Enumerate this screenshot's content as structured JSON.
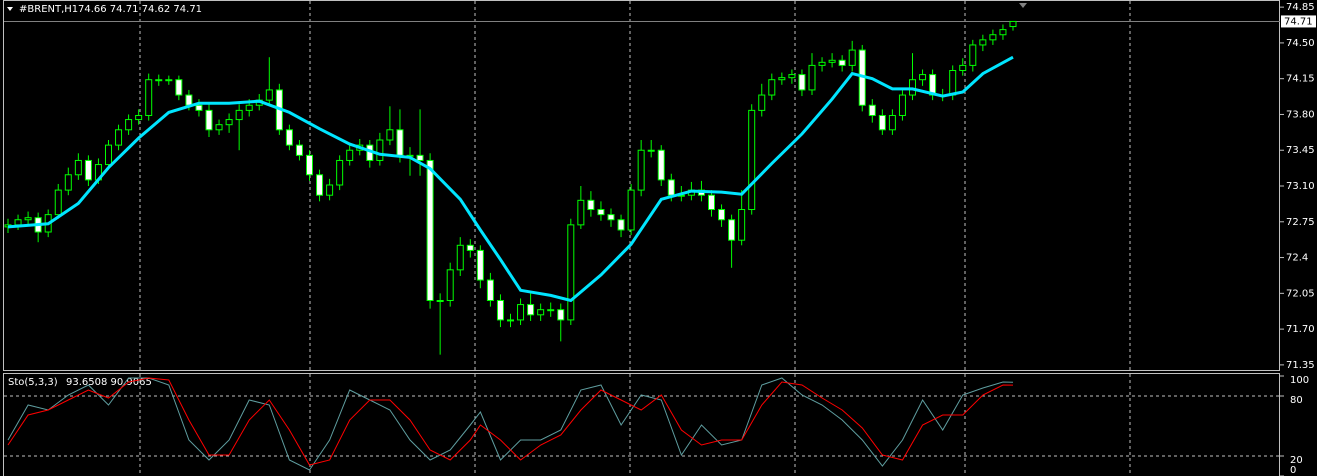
{
  "chart_data": {
    "type": "candlestick",
    "title": "#BRENT,H1",
    "ohlc_text": "74.66 74.71 74.62 74.71",
    "open": [
      72.7,
      72.72,
      72.77,
      72.79,
      72.65,
      72.82,
      73.06,
      73.21,
      73.35,
      73.16,
      73.31,
      73.5,
      73.65,
      73.75,
      73.79,
      74.14,
      74.14,
      74.14,
      73.99,
      73.89,
      73.84,
      73.65,
      73.7,
      73.75,
      73.84,
      73.89,
      73.94,
      74.04,
      73.65,
      73.5,
      73.4,
      73.21,
      73.01,
      73.11,
      73.35,
      73.45,
      73.5,
      73.35,
      73.55,
      73.65,
      73.4,
      73.4,
      73.35,
      71.98,
      71.98,
      72.28,
      72.52,
      72.47,
      72.18,
      71.98,
      71.79,
      71.79,
      71.94,
      71.84,
      71.89,
      71.89,
      71.79,
      72.72,
      72.96,
      72.87,
      72.82,
      72.77,
      72.67,
      73.06,
      73.45,
      73.45,
      73.16,
      73.01,
      73.01,
      73.06,
      73.01,
      72.87,
      72.77,
      72.57,
      72.87,
      73.84,
      73.99,
      74.14,
      74.16,
      74.19,
      74.04,
      74.28,
      74.31,
      74.33,
      74.28,
      74.43,
      73.89,
      73.79,
      73.65,
      73.79,
      73.99,
      74.14,
      74.19,
      73.99,
      73.99,
      74.23,
      74.28,
      74.48,
      74.53,
      74.58,
      74.66
    ],
    "high": [
      72.78,
      72.82,
      72.85,
      72.84,
      72.87,
      73.12,
      73.28,
      73.42,
      73.4,
      73.37,
      73.55,
      73.7,
      73.8,
      73.85,
      74.2,
      74.19,
      74.18,
      74.18,
      74.04,
      73.95,
      73.9,
      73.75,
      73.81,
      73.9,
      73.95,
      74.0,
      74.36,
      74.1,
      73.7,
      73.55,
      73.45,
      73.26,
      73.17,
      73.4,
      73.5,
      73.56,
      73.55,
      73.62,
      73.88,
      73.85,
      73.48,
      73.85,
      73.42,
      72.05,
      72.35,
      72.6,
      72.58,
      72.52,
      72.25,
      72.04,
      71.85,
      72.0,
      72.05,
      71.95,
      71.96,
      71.95,
      72.78,
      73.1,
      73.05,
      72.95,
      72.88,
      72.82,
      73.12,
      73.55,
      73.55,
      73.5,
      73.22,
      73.1,
      73.14,
      73.15,
      73.06,
      72.92,
      72.82,
      73.06,
      73.9,
      74.1,
      74.2,
      74.21,
      74.24,
      74.24,
      74.4,
      74.36,
      74.4,
      74.38,
      74.52,
      74.48,
      73.95,
      73.85,
      73.85,
      74.05,
      74.4,
      74.24,
      74.24,
      74.05,
      74.28,
      74.35,
      74.53,
      74.58,
      74.63,
      74.68,
      74.71
    ],
    "low": [
      72.64,
      72.67,
      72.72,
      72.55,
      72.6,
      72.78,
      73.01,
      73.16,
      73.1,
      73.12,
      73.26,
      73.45,
      73.6,
      73.7,
      73.74,
      74.08,
      74.09,
      73.94,
      73.84,
      73.78,
      73.58,
      73.6,
      73.62,
      73.45,
      73.78,
      73.84,
      73.89,
      73.6,
      73.45,
      73.35,
      73.15,
      72.95,
      72.96,
      73.06,
      73.3,
      73.4,
      73.28,
      73.3,
      73.5,
      73.33,
      73.2,
      73.2,
      71.9,
      71.45,
      71.92,
      72.22,
      72.4,
      72.1,
      71.92,
      71.72,
      71.72,
      71.74,
      71.78,
      71.78,
      71.82,
      71.58,
      71.74,
      72.68,
      72.8,
      72.76,
      72.7,
      72.6,
      72.62,
      73.0,
      73.38,
      73.1,
      72.95,
      72.95,
      72.96,
      72.95,
      72.8,
      72.7,
      72.3,
      72.52,
      72.82,
      73.78,
      73.94,
      74.09,
      74.1,
      73.98,
      73.99,
      74.22,
      74.26,
      74.22,
      74.22,
      73.83,
      73.72,
      73.6,
      73.6,
      73.74,
      73.94,
      74.08,
      73.94,
      73.93,
      73.94,
      74.18,
      74.22,
      74.42,
      74.48,
      74.53,
      74.62
    ],
    "close": [
      72.72,
      72.77,
      72.79,
      72.65,
      72.82,
      73.06,
      73.21,
      73.35,
      73.16,
      73.31,
      73.5,
      73.65,
      73.75,
      73.79,
      74.14,
      74.14,
      74.14,
      73.99,
      73.89,
      73.84,
      73.65,
      73.7,
      73.75,
      73.84,
      73.89,
      73.94,
      74.04,
      73.65,
      73.5,
      73.4,
      73.21,
      73.01,
      73.11,
      73.35,
      73.45,
      73.5,
      73.35,
      73.55,
      73.65,
      73.4,
      73.4,
      73.35,
      71.98,
      71.98,
      72.28,
      72.52,
      72.47,
      72.18,
      71.98,
      71.79,
      71.79,
      71.94,
      71.84,
      71.89,
      71.89,
      71.79,
      72.72,
      72.96,
      72.87,
      72.82,
      72.77,
      72.67,
      73.06,
      73.45,
      73.45,
      73.16,
      73.01,
      73.01,
      73.06,
      73.01,
      72.87,
      72.77,
      72.57,
      72.87,
      73.84,
      73.99,
      74.14,
      74.16,
      74.19,
      74.04,
      74.28,
      74.31,
      74.33,
      74.28,
      74.43,
      73.89,
      73.79,
      73.65,
      73.79,
      73.99,
      74.14,
      74.19,
      73.99,
      73.99,
      74.23,
      74.28,
      74.48,
      74.53,
      74.58,
      74.63,
      74.71
    ],
    "up_color": "#000000",
    "down_color": "#ffffff",
    "wick_color": "#00ff00",
    "ma": {
      "color": "#00e5ff",
      "x": [
        0,
        4,
        7,
        10,
        13,
        16,
        19,
        22,
        25,
        28,
        31,
        34,
        37,
        40,
        42,
        45,
        47,
        49,
        51,
        54,
        56,
        59,
        62,
        65,
        68,
        71,
        73,
        76,
        79,
        82,
        84,
        86,
        88,
        90,
        93,
        95,
        97,
        100
      ],
      "values": [
        72.7,
        72.73,
        72.93,
        73.28,
        73.57,
        73.82,
        73.91,
        73.91,
        73.93,
        73.82,
        73.66,
        73.51,
        73.41,
        73.38,
        73.27,
        72.97,
        72.67,
        72.38,
        72.08,
        72.03,
        71.98,
        72.23,
        72.53,
        72.97,
        73.05,
        73.04,
        73.02,
        73.32,
        73.61,
        73.95,
        74.2,
        74.15,
        74.05,
        74.05,
        73.98,
        74.02,
        74.2,
        74.36
      ]
    },
    "ylim": [
      71.3,
      74.91
    ],
    "yticks": [
      74.85,
      {
        "value": 74.5,
        "label": "74.50"
      },
      74.15,
      {
        "value": 73.8,
        "label": "73.80"
      },
      73.45,
      {
        "value": 73.1,
        "label": "73.10"
      },
      72.75,
      72.4,
      72.05,
      {
        "value": 71.7,
        "label": "71.70"
      },
      71.35
    ],
    "current_price": 74.71,
    "grid": true,
    "indicator": {
      "type": "line",
      "title": "Sto(5,3,3)",
      "readout": "93.6508 90.9065",
      "ylim": [
        0,
        100
      ],
      "yticks": [
        100,
        80,
        20,
        0
      ],
      "levels": [
        80,
        20
      ],
      "series": [
        {
          "color": "#5f9ea0",
          "x": [
            0,
            2,
            4,
            6,
            8,
            10,
            12,
            14,
            16,
            18,
            20,
            22,
            24,
            26,
            28,
            30,
            32,
            34,
            36,
            38,
            40,
            42,
            44,
            46,
            47,
            49,
            51,
            53,
            55,
            57,
            59,
            61,
            63,
            65,
            67,
            69,
            71,
            73,
            75,
            77,
            79,
            81,
            83,
            85,
            87,
            89,
            91,
            93,
            95,
            97,
            99,
            100
          ],
          "values": [
            36,
            71,
            66,
            81,
            91,
            71,
            98,
            98,
            91,
            36,
            16,
            36,
            76,
            71,
            16,
            6,
            36,
            86,
            76,
            66,
            36,
            16,
            26,
            51,
            64,
            16,
            36,
            36,
            46,
            86,
            91,
            51,
            81,
            76,
            21,
            51,
            31,
            36,
            91,
            98,
            81,
            71,
            56,
            36,
            10,
            36,
            76,
            46,
            81,
            88,
            94,
            93.6508
          ]
        },
        {
          "color": "#ff0000",
          "x": [
            0,
            2,
            4,
            6,
            8,
            10,
            12,
            14,
            16,
            18,
            20,
            22,
            24,
            26,
            28,
            30,
            32,
            34,
            36,
            38,
            40,
            42,
            44,
            46,
            47,
            49,
            51,
            53,
            55,
            57,
            59,
            61,
            63,
            65,
            67,
            69,
            71,
            73,
            75,
            77,
            79,
            81,
            83,
            85,
            87,
            89,
            91,
            93,
            95,
            97,
            99,
            100
          ],
          "values": [
            31,
            61,
            66,
            76,
            86,
            78,
            94,
            98,
            96,
            56,
            21,
            21,
            56,
            76,
            46,
            11,
            16,
            56,
            76,
            76,
            56,
            26,
            16,
            36,
            51,
            36,
            16,
            31,
            41,
            66,
            86,
            76,
            66,
            81,
            46,
            31,
            36,
            36,
            71,
            94,
            91,
            78,
            66,
            48,
            21,
            16,
            51,
            61,
            61,
            81,
            91,
            90.9065
          ]
        }
      ]
    }
  }
}
